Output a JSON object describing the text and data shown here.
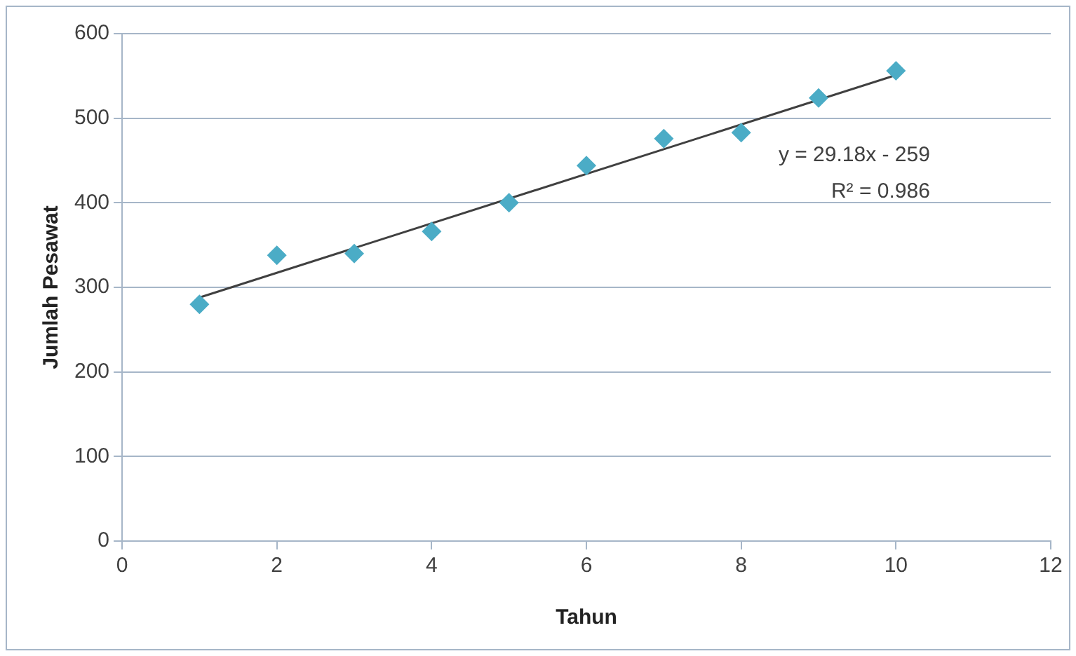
{
  "chart_data": {
    "type": "scatter",
    "xlabel": "Tahun",
    "ylabel": "Jumlah Pesawat",
    "series": [
      {
        "color": "#4bacc6",
        "marker": "diamond",
        "x": [
          1,
          2,
          3,
          4,
          5,
          6,
          7,
          8,
          9,
          10
        ],
        "values": [
          280,
          338,
          340,
          366,
          400,
          444,
          476,
          483,
          524,
          556
        ]
      },
      {
        "type": "line",
        "color": "#404040",
        "marker": "none",
        "x": [
          1,
          10
        ],
        "values": [
          288,
          551
        ]
      }
    ],
    "xlim": [
      0,
      12
    ],
    "xticks": [
      0,
      2,
      4,
      6,
      8,
      10,
      12
    ],
    "ylim": [
      0,
      600
    ],
    "yticks": [
      0,
      100,
      200,
      300,
      400,
      500,
      600
    ],
    "grid": "y",
    "legend": false,
    "annotations": [
      "y = 29.18x - 259",
      "R² = 0.986"
    ]
  }
}
